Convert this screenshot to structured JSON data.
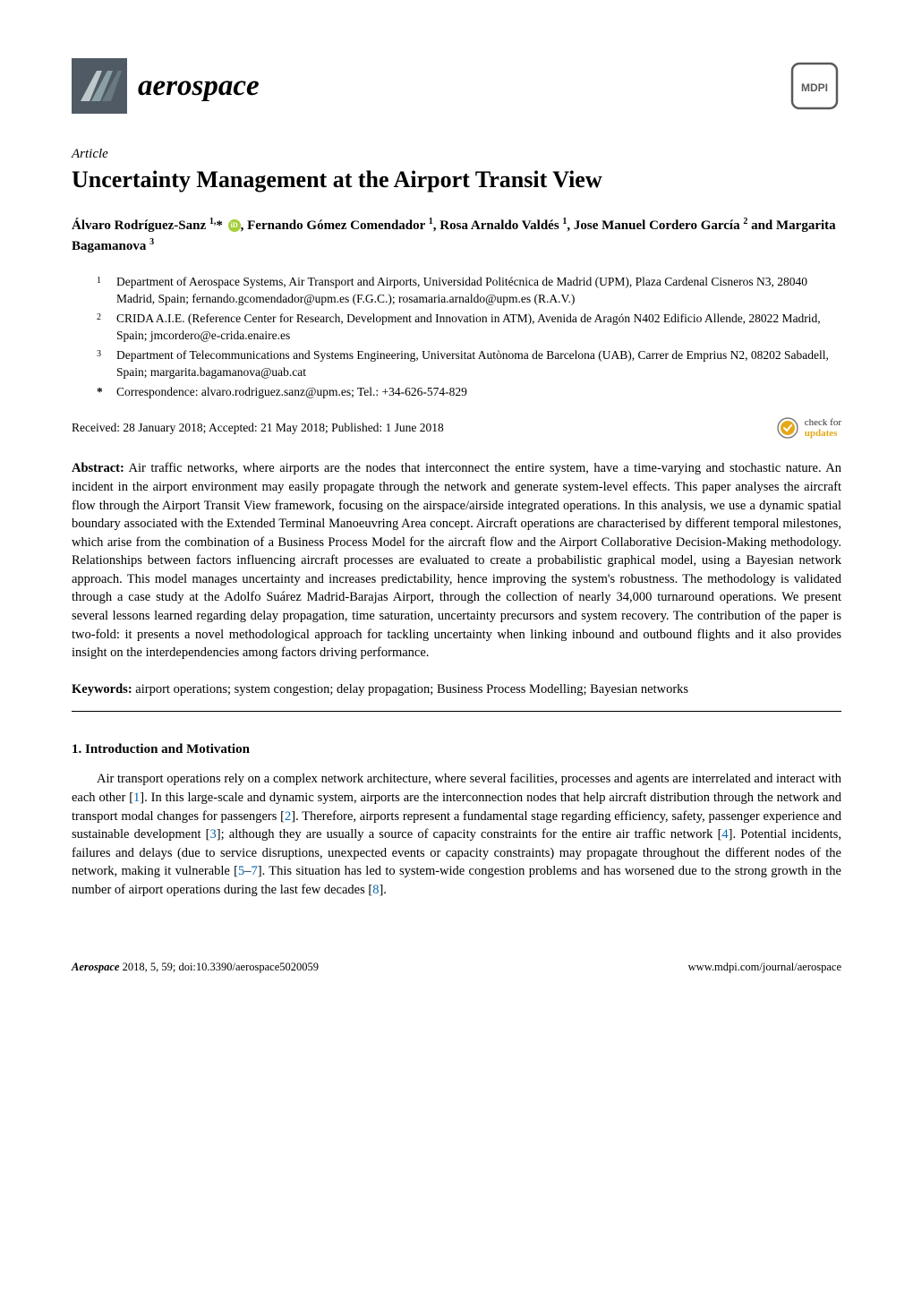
{
  "journal": {
    "name": "aerospace",
    "logo_bg": "#505a64",
    "logo_stripes": [
      "#bfc8cb",
      "#8aa0a4",
      "#6a797f"
    ],
    "mdpi_label": "MDPI"
  },
  "article_type": "Article",
  "title": "Uncertainty Management at the Airport Transit View",
  "authors_html": "Álvaro Rodríguez-Sanz <sup>1,</sup>* <span class='orcid'></span>, Fernando Gómez Comendador <sup>1</sup>, Rosa Arnaldo Valdés <sup>1</sup>, Jose Manuel Cordero García <sup>2</sup> and Margarita Bagamanova <sup>3</sup>",
  "affiliations": [
    {
      "num": "1",
      "text": "Department of Aerospace Systems, Air Transport and Airports, Universidad Politécnica de Madrid (UPM), Plaza Cardenal Cisneros N3, 28040 Madrid, Spain; fernando.gcomendador@upm.es (F.G.C.); rosamaria.arnaldo@upm.es (R.A.V.)"
    },
    {
      "num": "2",
      "text": "CRIDA A.I.E. (Reference Center for Research, Development and Innovation in ATM), Avenida de Aragón N402 Edificio Allende, 28022 Madrid, Spain; jmcordero@e-crida.enaire.es"
    },
    {
      "num": "3",
      "text": "Department of Telecommunications and Systems Engineering, Universitat Autònoma de Barcelona (UAB), Carrer de Emprius N2, 08202 Sabadell, Spain; margarita.bagamanova@uab.cat"
    }
  ],
  "correspondence": {
    "star": "*",
    "text": "Correspondence: alvaro.rodriguez.sanz@upm.es; Tel.: +34-626-574-829"
  },
  "dates": "Received: 28 January 2018; Accepted: 21 May 2018; Published: 1 June 2018",
  "updates_badge": {
    "line1": "check for",
    "line2": "updates",
    "mark_color": "#e5a818"
  },
  "abstract": {
    "label": "Abstract:",
    "text": "Air traffic networks, where airports are the nodes that interconnect the entire system, have a time-varying and stochastic nature. An incident in the airport environment may easily propagate through the network and generate system-level effects. This paper analyses the aircraft flow through the Airport Transit View framework, focusing on the airspace/airside integrated operations. In this analysis, we use a dynamic spatial boundary associated with the Extended Terminal Manoeuvring Area concept. Aircraft operations are characterised by different temporal milestones, which arise from the combination of a Business Process Model for the aircraft flow and the Airport Collaborative Decision-Making methodology. Relationships between factors influencing aircraft processes are evaluated to create a probabilistic graphical model, using a Bayesian network approach. This model manages uncertainty and increases predictability, hence improving the system's robustness. The methodology is validated through a case study at the Adolfo Suárez Madrid-Barajas Airport, through the collection of nearly 34,000 turnaround operations. We present several lessons learned regarding delay propagation, time saturation, uncertainty precursors and system recovery. The contribution of the paper is two-fold: it presents a novel methodological approach for tackling uncertainty when linking inbound and outbound flights and it also provides insight on the interdependencies among factors driving performance."
  },
  "keywords": {
    "label": "Keywords:",
    "text": "airport operations; system congestion; delay propagation; Business Process Modelling; Bayesian networks"
  },
  "section1": {
    "heading": "1. Introduction and Motivation",
    "body_html": "Air transport operations rely on a complex network architecture, where several facilities, processes and agents are interrelated and interact with each other [<span class='cite'>1</span>]. In this large-scale and dynamic system, airports are the interconnection nodes that help aircraft distribution through the network and transport modal changes for passengers [<span class='cite'>2</span>]. Therefore, airports represent a fundamental stage regarding efficiency, safety, passenger experience and sustainable development [<span class='cite'>3</span>]; although they are usually a source of capacity constraints for the entire air traffic network [<span class='cite'>4</span>]. Potential incidents, failures and delays (due to service disruptions, unexpected events or capacity constraints) may propagate throughout the different nodes of the network, making it vulnerable [<span class='cite'>5</span>–<span class='cite'>7</span>]. This situation has led to system-wide congestion problems and has worsened due to the strong growth in the number of airport operations during the last few decades [<span class='cite'>8</span>]."
  },
  "footer": {
    "left_journal": "Aerospace",
    "left_rest": " 2018, 5, 59; doi:10.3390/aerospace5020059",
    "right": "www.mdpi.com/journal/aerospace"
  },
  "colors": {
    "text": "#000000",
    "cite": "#0066b3",
    "orcid": "#a6ce39"
  }
}
